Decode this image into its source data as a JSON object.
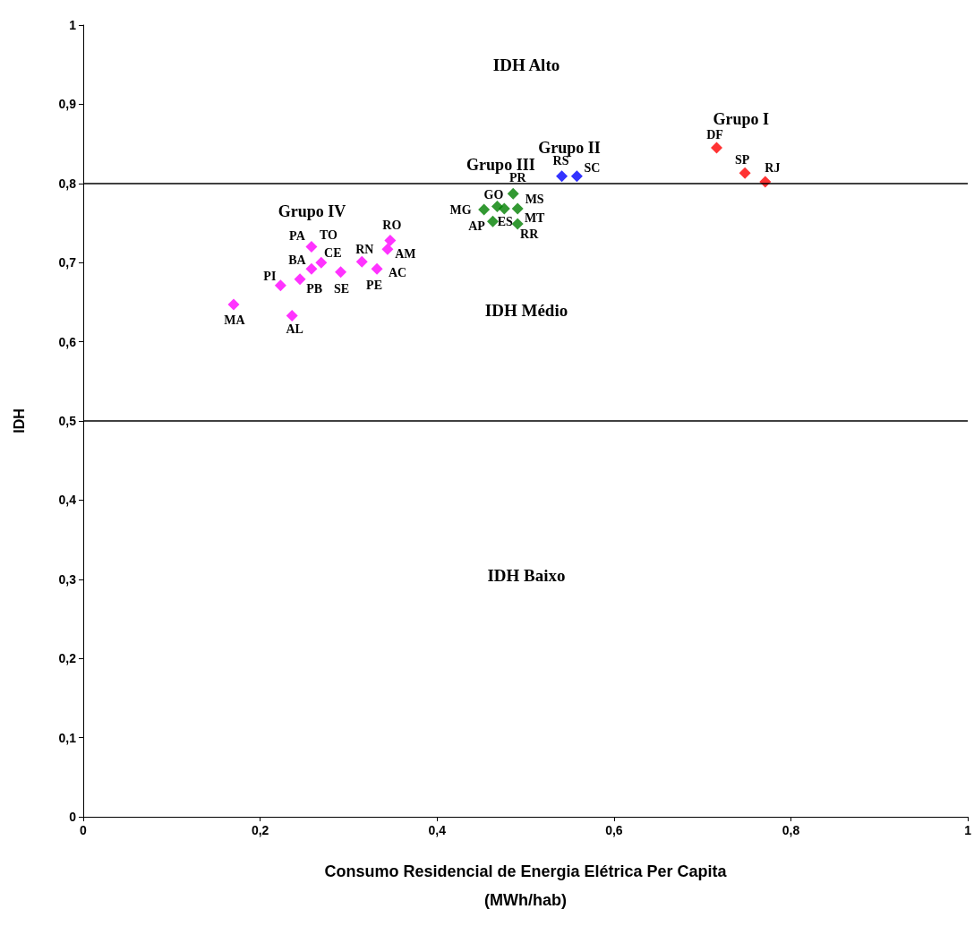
{
  "chart_data": {
    "type": "scatter",
    "xlabel": "Consumo Residencial de Energia Elétrica Per Capita\n(MWh/hab)",
    "ylabel": "IDH",
    "marker": "diamond",
    "legend": false,
    "grid": false,
    "xlim": [
      0,
      1
    ],
    "xticks": [
      0,
      {
        "value": 0.2,
        "label": "0,2"
      },
      {
        "value": 0.4,
        "label": "0,4"
      },
      {
        "value": 0.6,
        "label": "0,6"
      },
      {
        "value": 0.8,
        "label": "0,8"
      },
      1
    ],
    "ylim": [
      0,
      1
    ],
    "yticks": [
      0,
      {
        "value": 0.1,
        "label": "0,1"
      },
      {
        "value": 0.2,
        "label": "0,2"
      },
      {
        "value": 0.3,
        "label": "0,3"
      },
      {
        "value": 0.4,
        "label": "0,4"
      },
      {
        "value": 0.5,
        "label": "0,5"
      },
      {
        "value": 0.6,
        "label": "0,6"
      },
      {
        "value": 0.7,
        "label": "0,7"
      },
      {
        "value": 0.8,
        "label": "0,8"
      },
      {
        "value": 0.9,
        "label": "0,9"
      },
      1
    ],
    "series": [
      {
        "name": "Grupo I",
        "color": "#ff0000",
        "x": [
          0.716,
          0.748,
          0.771
        ],
        "values": [
          0.845,
          0.813,
          0.802
        ]
      },
      {
        "name": "Grupo II",
        "color": "#0000ff",
        "x": [
          0.541,
          0.558
        ],
        "values": [
          0.809,
          0.809
        ]
      },
      {
        "name": "Grupo III",
        "color": "#008000",
        "x": [
          0.486,
          0.453,
          0.468,
          0.476,
          0.491,
          0.463,
          0.491
        ],
        "values": [
          0.787,
          0.767,
          0.771,
          0.768,
          0.768,
          0.752,
          0.749
        ]
      },
      {
        "name": "Grupo IV",
        "color": "#ff00ff",
        "x": [
          0.258,
          0.269,
          0.258,
          0.245,
          0.223,
          0.291,
          0.315,
          0.332,
          0.347,
          0.344,
          0.17,
          0.236
        ],
        "values": [
          0.72,
          0.7,
          0.692,
          0.679,
          0.671,
          0.688,
          0.701,
          0.692,
          0.728,
          0.717,
          0.647,
          0.633
        ]
      }
    ],
    "ref_lines": [
      {
        "axis": "y",
        "value": 0.8,
        "color": "#000000"
      },
      {
        "axis": "y",
        "value": 0.5,
        "color": "#000000"
      }
    ],
    "annotations": [
      "IDH Alto",
      "IDH Médio",
      "IDH Baixo",
      {
        "text": "PA",
        "x": 0.258,
        "y": 0.72
      },
      {
        "text": "TO",
        "x": 0.258,
        "y": 0.72
      },
      {
        "text": "CE",
        "x": 0.269,
        "y": 0.7
      },
      {
        "text": "BA",
        "x": 0.258,
        "y": 0.692
      },
      {
        "text": "PB",
        "x": 0.245,
        "y": 0.679
      },
      {
        "text": "PI",
        "x": 0.223,
        "y": 0.671
      },
      {
        "text": "SE",
        "x": 0.291,
        "y": 0.688
      },
      {
        "text": "RN",
        "x": 0.315,
        "y": 0.701
      },
      {
        "text": "RO",
        "x": 0.347,
        "y": 0.728
      },
      {
        "text": "AM",
        "x": 0.344,
        "y": 0.717
      },
      {
        "text": "AC",
        "x": 0.332,
        "y": 0.692
      },
      {
        "text": "PE",
        "x": 0.332,
        "y": 0.692
      },
      {
        "text": "MA",
        "x": 0.17,
        "y": 0.647
      },
      {
        "text": "AL",
        "x": 0.236,
        "y": 0.633
      },
      {
        "text": "PR",
        "x": 0.486,
        "y": 0.787
      },
      {
        "text": "GO",
        "x": 0.468,
        "y": 0.771
      },
      {
        "text": "MS",
        "x": 0.491,
        "y": 0.768
      },
      {
        "text": "MG",
        "x": 0.453,
        "y": 0.767
      },
      {
        "text": "ES",
        "x": 0.476,
        "y": 0.768
      },
      {
        "text": "MT",
        "x": 0.491,
        "y": 0.768
      },
      {
        "text": "AP",
        "x": 0.463,
        "y": 0.752
      },
      {
        "text": "RR",
        "x": 0.491,
        "y": 0.749
      },
      {
        "text": "RS",
        "x": 0.541,
        "y": 0.809
      },
      {
        "text": "SC",
        "x": 0.558,
        "y": 0.809
      },
      {
        "text": "DF",
        "x": 0.716,
        "y": 0.845
      },
      {
        "text": "SP",
        "x": 0.748,
        "y": 0.813
      },
      {
        "text": "RJ",
        "x": 0.771,
        "y": 0.802
      }
    ]
  }
}
